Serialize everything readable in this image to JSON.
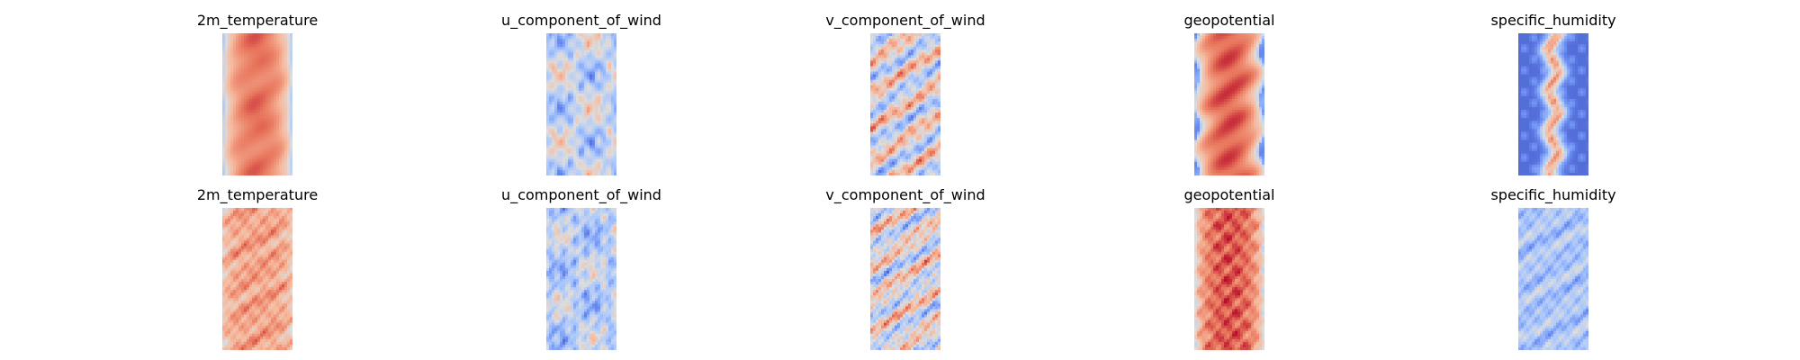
{
  "figure": {
    "background": "#ffffff",
    "colormap": "coolwarm",
    "colormap_stops": [
      "#3b4cc0",
      "#6f92f3",
      "#aac7fd",
      "#dddddd",
      "#f7b89c",
      "#e7745b",
      "#b40426"
    ]
  },
  "chart_data": [
    {
      "type": "heatmap",
      "title": "2m_temperature",
      "row": "top",
      "pattern": "warm-core-cool-edges",
      "axis": "off"
    },
    {
      "type": "heatmap",
      "title": "u_component_of_wind",
      "row": "top",
      "pattern": "cool-streaks",
      "axis": "off"
    },
    {
      "type": "heatmap",
      "title": "v_component_of_wind",
      "row": "top",
      "pattern": "mixed-noise",
      "axis": "off"
    },
    {
      "type": "heatmap",
      "title": "geopotential",
      "row": "top",
      "pattern": "warm-core-cool-edges-wavy",
      "axis": "off"
    },
    {
      "type": "heatmap",
      "title": "specific_humidity",
      "row": "top",
      "pattern": "deep-cool-with-warm-spine",
      "axis": "off"
    },
    {
      "type": "heatmap",
      "title": "2m_temperature",
      "row": "bottom",
      "pattern": "warm-textured",
      "axis": "off"
    },
    {
      "type": "heatmap",
      "title": "u_component_of_wind",
      "row": "bottom",
      "pattern": "cool-streaks-noisy",
      "axis": "off"
    },
    {
      "type": "heatmap",
      "title": "v_component_of_wind",
      "row": "bottom",
      "pattern": "mixed-noise-dense",
      "axis": "off"
    },
    {
      "type": "heatmap",
      "title": "geopotential",
      "row": "bottom",
      "pattern": "warm-blotchy",
      "axis": "off"
    },
    {
      "type": "heatmap",
      "title": "specific_humidity",
      "row": "bottom",
      "pattern": "cool-speckled",
      "axis": "off"
    }
  ]
}
